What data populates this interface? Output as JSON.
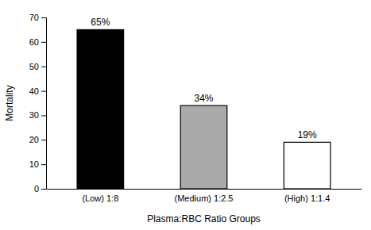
{
  "chart_data": {
    "type": "bar",
    "categories": [
      "(Low) 1:8",
      "(Medium) 1:2.5",
      "(High) 1:1.4"
    ],
    "values": [
      65,
      34,
      19
    ],
    "value_labels": [
      "65%",
      "34%",
      "19%"
    ],
    "data_labels": true,
    "colors": [
      "#000000",
      "#aaaaaa",
      "#ffffff"
    ],
    "xlabel": "Plasma:RBC Ratio Groups",
    "ylabel": "Mortality",
    "ylim": [
      0,
      70
    ],
    "yticks": [
      0,
      10,
      20,
      30,
      40,
      50,
      60,
      70
    ],
    "grid": false
  }
}
